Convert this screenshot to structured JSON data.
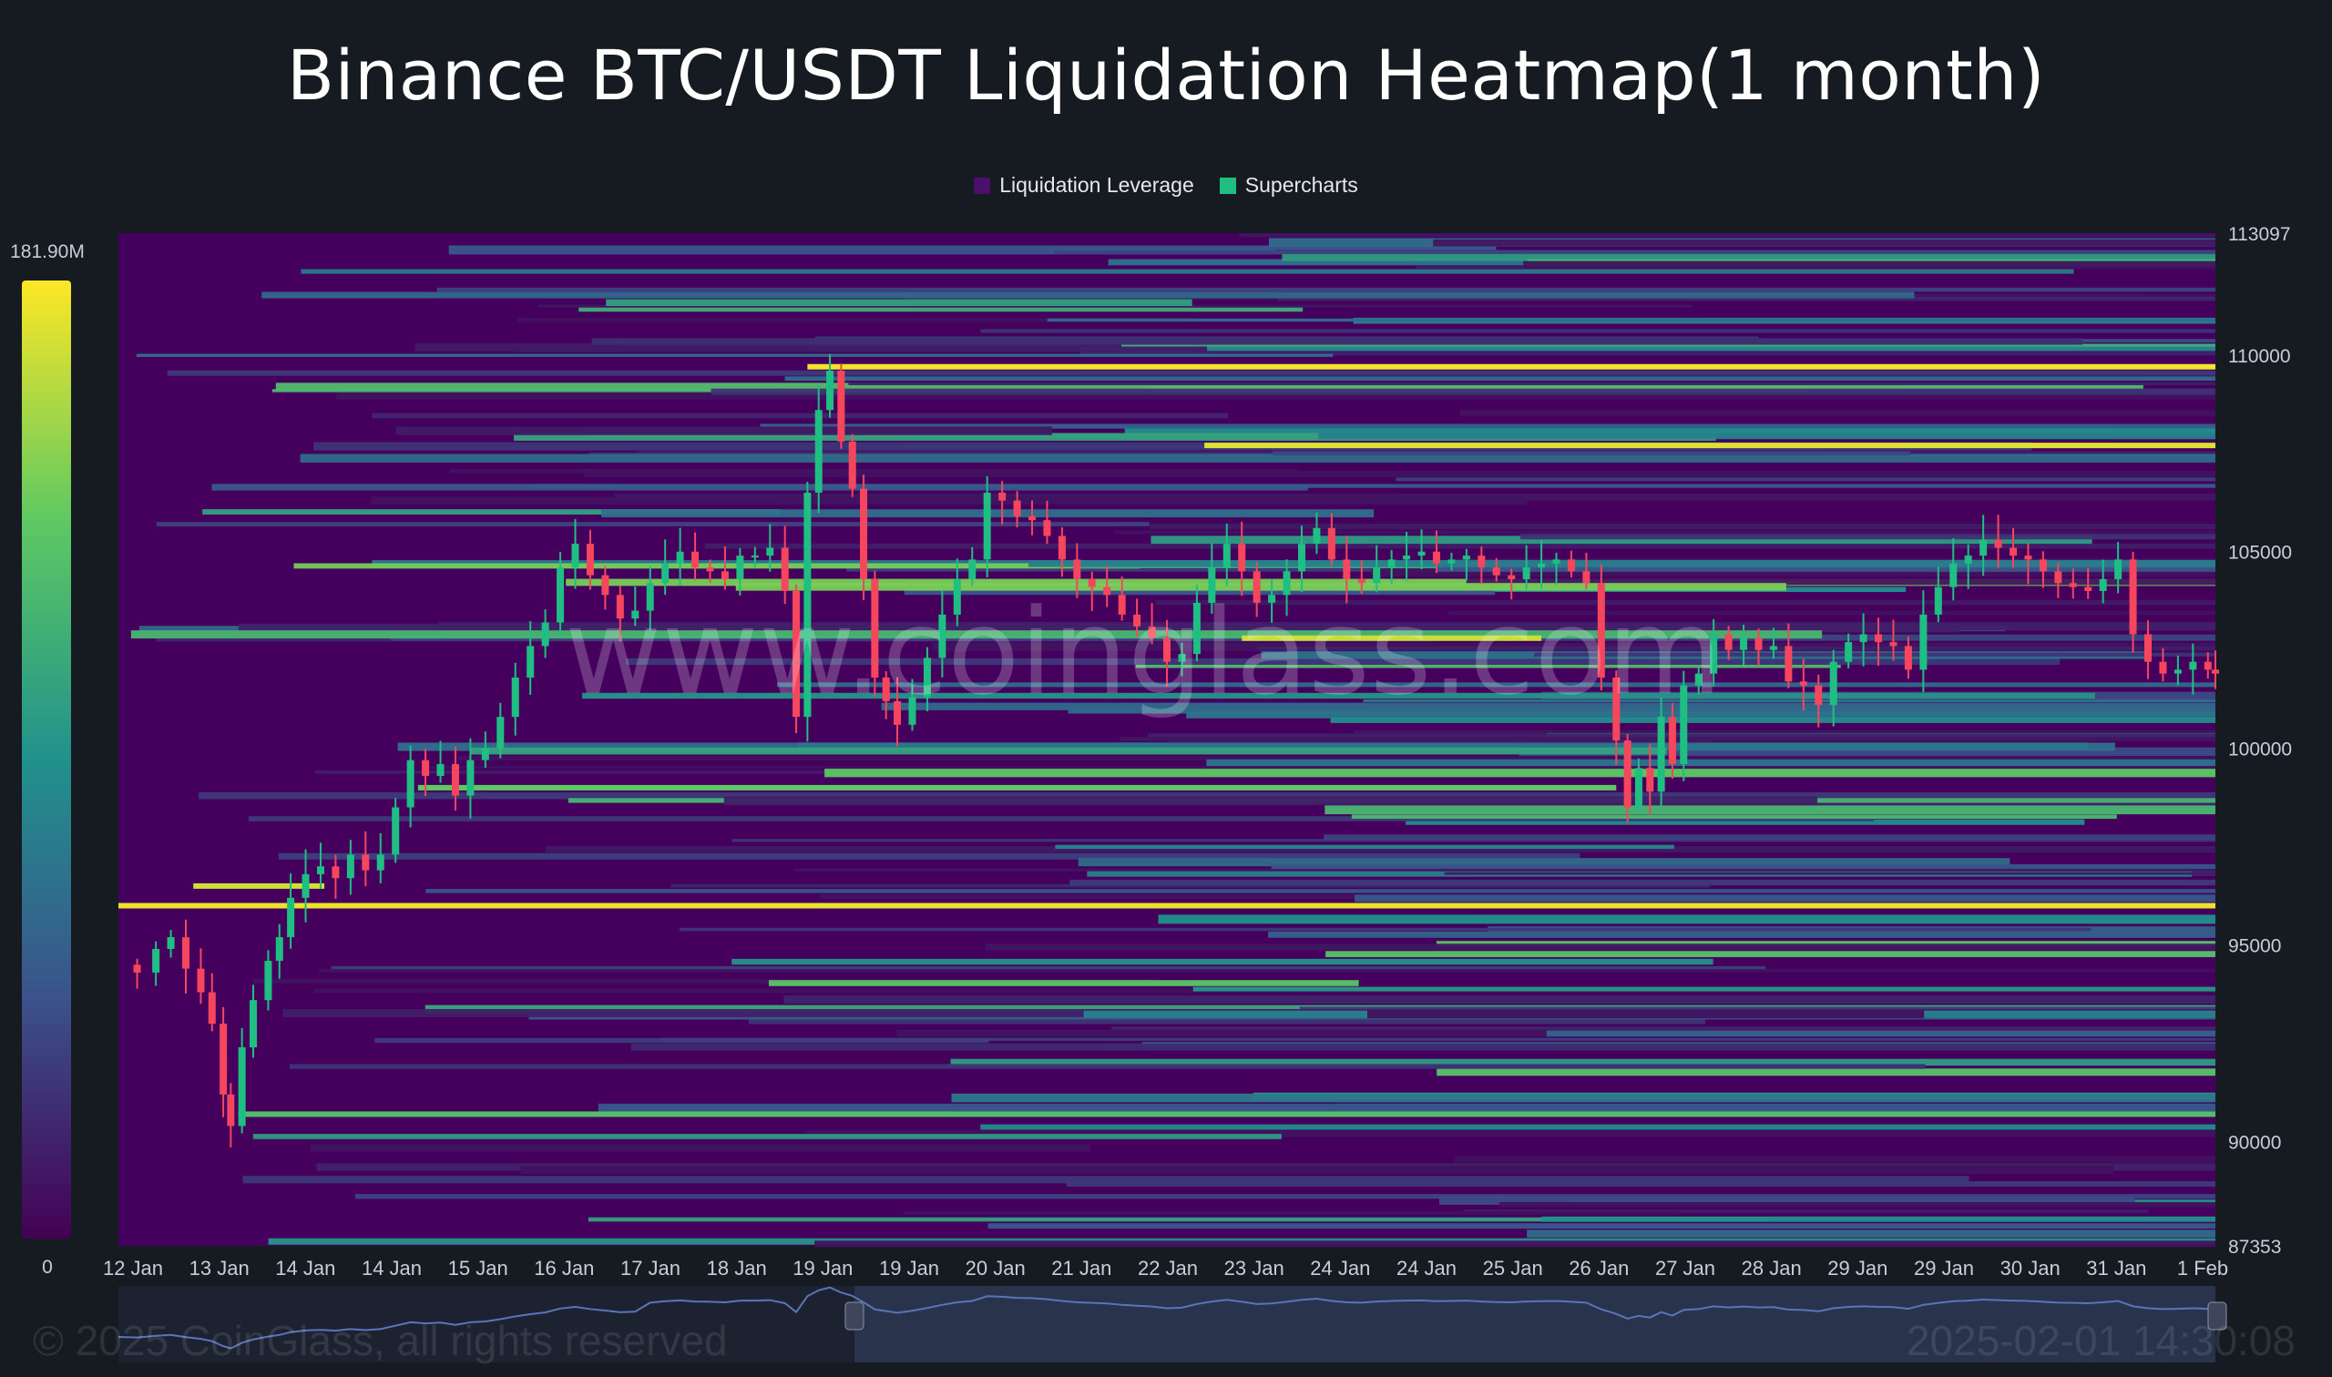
{
  "chart_data": {
    "type": "heatmap",
    "title": "Binance BTC/USDT Liquidation Heatmap(1 month)",
    "legend": [
      {
        "label": "Liquidation Leverage",
        "color": "#4a0f6b"
      },
      {
        "label": "Supercharts",
        "color": "#1fbf84"
      }
    ],
    "colorbar": {
      "max_label": "181.90M",
      "min_label": "0",
      "colors": [
        "#440154",
        "#3b528b",
        "#21918c",
        "#5ec962",
        "#fde725"
      ]
    },
    "y_axis": {
      "ylim": [
        87353,
        113097
      ],
      "ticks": [
        "113097",
        "110000",
        "105000",
        "100000",
        "95000",
        "90000",
        "87353"
      ],
      "tick_values": [
        113097,
        110000,
        105000,
        100000,
        95000,
        90000,
        87353
      ]
    },
    "x_axis": {
      "ticks": [
        "12 Jan",
        "13 Jan",
        "14 Jan",
        "14 Jan",
        "15 Jan",
        "16 Jan",
        "17 Jan",
        "18 Jan",
        "19 Jan",
        "19 Jan",
        "20 Jan",
        "21 Jan",
        "22 Jan",
        "23 Jan",
        "24 Jan",
        "24 Jan",
        "25 Jan",
        "26 Jan",
        "27 Jan",
        "28 Jan",
        "29 Jan",
        "29 Jan",
        "30 Jan",
        "31 Jan",
        "1 Feb"
      ]
    },
    "price_path": [
      [
        0,
        94500
      ],
      [
        0.5,
        94300
      ],
      [
        1,
        94900
      ],
      [
        1.4,
        95200
      ],
      [
        1.8,
        94400
      ],
      [
        2.2,
        93800
      ],
      [
        2.5,
        93000
      ],
      [
        2.8,
        91200
      ],
      [
        3,
        90400
      ],
      [
        3.3,
        92400
      ],
      [
        3.6,
        93600
      ],
      [
        4,
        94600
      ],
      [
        4.3,
        95200
      ],
      [
        4.6,
        96200
      ],
      [
        5,
        96800
      ],
      [
        5.4,
        97000
      ],
      [
        5.8,
        96700
      ],
      [
        6.2,
        97300
      ],
      [
        6.6,
        96900
      ],
      [
        7,
        97300
      ],
      [
        7.4,
        98500
      ],
      [
        7.8,
        99700
      ],
      [
        8.2,
        99300
      ],
      [
        8.6,
        99600
      ],
      [
        9,
        98800
      ],
      [
        9.4,
        99700
      ],
      [
        9.8,
        100000
      ],
      [
        10.2,
        100800
      ],
      [
        10.6,
        101800
      ],
      [
        11,
        102600
      ],
      [
        11.4,
        103200
      ],
      [
        11.8,
        104600
      ],
      [
        12.2,
        105200
      ],
      [
        12.6,
        104400
      ],
      [
        13,
        103900
      ],
      [
        13.4,
        103300
      ],
      [
        13.8,
        103500
      ],
      [
        14.2,
        104200
      ],
      [
        14.6,
        104700
      ],
      [
        15,
        105000
      ],
      [
        15.4,
        104600
      ],
      [
        15.8,
        104500
      ],
      [
        16.2,
        104300
      ],
      [
        16.6,
        104900
      ],
      [
        17,
        104900
      ],
      [
        17.4,
        105100
      ],
      [
        17.8,
        104000
      ],
      [
        18.1,
        100800
      ],
      [
        18.4,
        106500
      ],
      [
        18.7,
        108600
      ],
      [
        19,
        109600
      ],
      [
        19.3,
        107800
      ],
      [
        19.6,
        106600
      ],
      [
        19.9,
        104300
      ],
      [
        20.2,
        101800
      ],
      [
        20.5,
        101200
      ],
      [
        20.8,
        100600
      ],
      [
        21.2,
        101300
      ],
      [
        21.6,
        102300
      ],
      [
        22,
        103400
      ],
      [
        22.4,
        104300
      ],
      [
        22.8,
        104800
      ],
      [
        23.2,
        106500
      ],
      [
        23.6,
        106300
      ],
      [
        24,
        105900
      ],
      [
        24.4,
        105800
      ],
      [
        24.8,
        105400
      ],
      [
        25.2,
        104800
      ],
      [
        25.6,
        104300
      ],
      [
        26,
        104100
      ],
      [
        26.4,
        103900
      ],
      [
        26.8,
        103400
      ],
      [
        27.2,
        103100
      ],
      [
        27.6,
        102800
      ],
      [
        28,
        102200
      ],
      [
        28.4,
        102400
      ],
      [
        28.8,
        103700
      ],
      [
        29.2,
        104600
      ],
      [
        29.6,
        105200
      ],
      [
        30,
        104500
      ],
      [
        30.4,
        103700
      ],
      [
        30.8,
        103900
      ],
      [
        31.2,
        104500
      ],
      [
        31.6,
        105200
      ],
      [
        32,
        105600
      ],
      [
        32.4,
        104800
      ],
      [
        32.8,
        104300
      ],
      [
        33.2,
        104200
      ],
      [
        33.6,
        104600
      ],
      [
        34,
        104800
      ],
      [
        34.4,
        104900
      ],
      [
        34.8,
        105000
      ],
      [
        35.2,
        104700
      ],
      [
        35.6,
        104800
      ],
      [
        36,
        104900
      ],
      [
        36.4,
        104600
      ],
      [
        36.8,
        104400
      ],
      [
        37.2,
        104300
      ],
      [
        37.6,
        104600
      ],
      [
        38,
        104700
      ],
      [
        38.4,
        104800
      ],
      [
        38.8,
        104500
      ],
      [
        39.2,
        104200
      ],
      [
        39.6,
        101800
      ],
      [
        40,
        100200
      ],
      [
        40.3,
        98500
      ],
      [
        40.6,
        99500
      ],
      [
        40.9,
        98900
      ],
      [
        41.2,
        100800
      ],
      [
        41.5,
        99600
      ],
      [
        41.8,
        101600
      ],
      [
        42.2,
        101900
      ],
      [
        42.6,
        102900
      ],
      [
        43,
        102500
      ],
      [
        43.4,
        102800
      ],
      [
        43.8,
        102500
      ],
      [
        44.2,
        102600
      ],
      [
        44.6,
        101700
      ],
      [
        45,
        101600
      ],
      [
        45.4,
        101100
      ],
      [
        45.8,
        102200
      ],
      [
        46.2,
        102700
      ],
      [
        46.6,
        102900
      ],
      [
        47,
        102700
      ],
      [
        47.4,
        102600
      ],
      [
        47.8,
        102000
      ],
      [
        48.2,
        103400
      ],
      [
        48.6,
        104100
      ],
      [
        49,
        104700
      ],
      [
        49.4,
        104900
      ],
      [
        49.8,
        105300
      ],
      [
        50.2,
        105100
      ],
      [
        50.6,
        104900
      ],
      [
        51,
        104800
      ],
      [
        51.4,
        104500
      ],
      [
        51.8,
        104200
      ],
      [
        52.2,
        104100
      ],
      [
        52.6,
        104000
      ],
      [
        53,
        104300
      ],
      [
        53.4,
        104800
      ],
      [
        53.8,
        102900
      ],
      [
        54.2,
        102200
      ],
      [
        54.6,
        101900
      ],
      [
        55,
        102000
      ],
      [
        55.4,
        102200
      ],
      [
        55.8,
        102000
      ],
      [
        56,
        101900
      ]
    ]
  },
  "watermark": "www.coinglass.com",
  "footer": {
    "copyright": "© 2025 CoinGlass, all rights reserved",
    "timestamp": "2025-02-01 14:30:08"
  },
  "colors": {
    "background": "#161b22",
    "heat_base": "#45005e",
    "up_candle": "#1fbf84",
    "down_candle": "#f6465d",
    "axis_text": "#c9ced6"
  }
}
